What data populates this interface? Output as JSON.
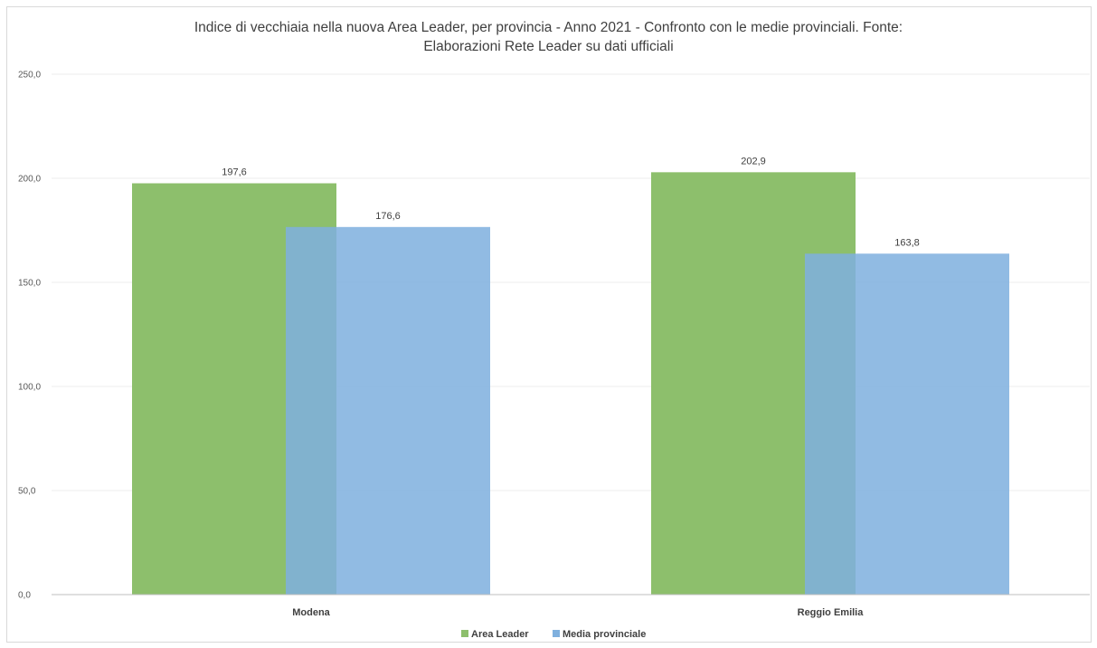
{
  "chart_data": {
    "type": "bar",
    "title_lines": [
      "Indice di vecchiaia nella nuova Area Leader, per provincia - Anno 2021 - Confronto con le medie provinciali. Fonte:",
      "Elaborazioni Rete Leader su dati ufficiali"
    ],
    "categories": [
      "Modena",
      "Reggio Emilia"
    ],
    "series": [
      {
        "name": "Area Leader",
        "values": [
          197.6,
          202.9
        ],
        "labels": [
          "197,6",
          "202,9"
        ],
        "color": "#8dbf6c"
      },
      {
        "name": "Media provinciale",
        "values": [
          176.6,
          163.8
        ],
        "labels": [
          "176,6",
          "163,8"
        ],
        "color": "#7fb0de"
      }
    ],
    "yticks": [
      0,
      50,
      100,
      150,
      200,
      250
    ],
    "ytick_labels": [
      "0,0",
      "50,0",
      "100,0",
      "150,0",
      "200,0",
      "250,0"
    ],
    "ylim": [
      0,
      250
    ],
    "grid": true,
    "legend_position": "bottom"
  }
}
